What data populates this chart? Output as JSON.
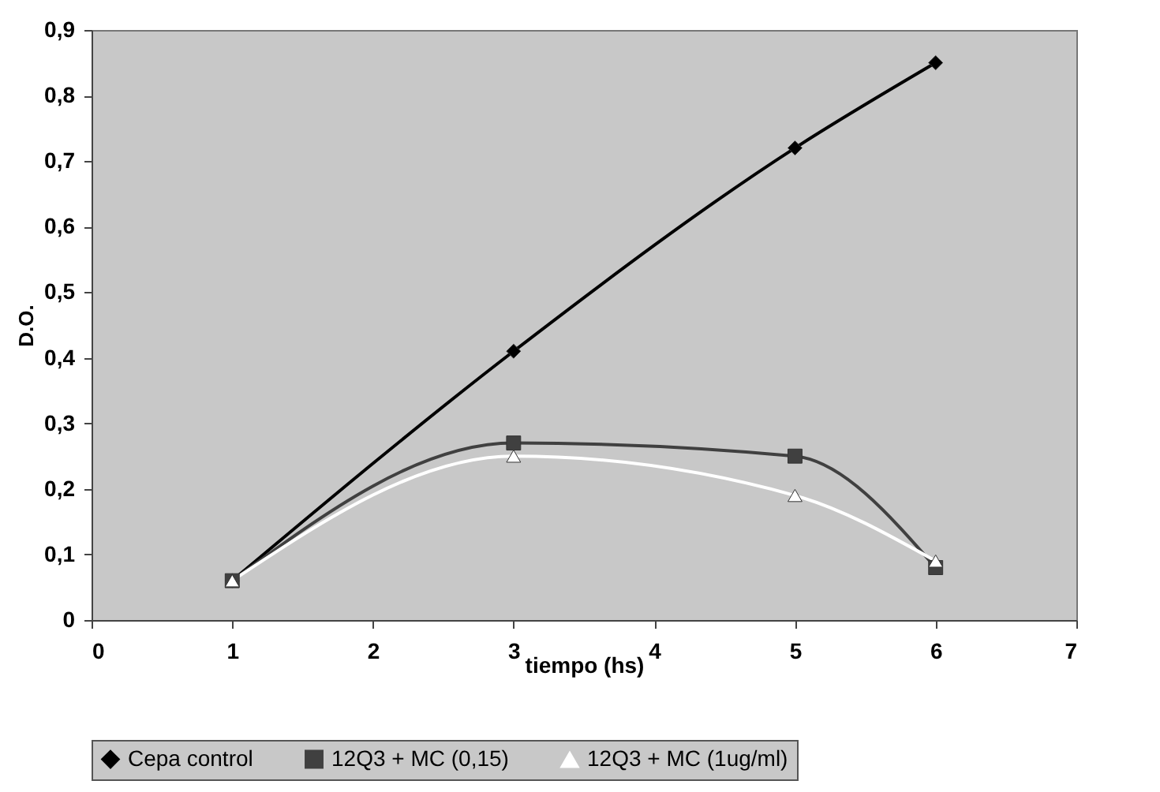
{
  "chart_data": {
    "type": "line",
    "xlabel": "tiempo (hs)",
    "ylabel": "D.O.",
    "x": [
      1,
      3,
      5,
      6
    ],
    "series": [
      {
        "name": "Cepa control",
        "color": "#000000",
        "marker": "diamond",
        "values": [
          0.06,
          0.41,
          0.72,
          0.85
        ]
      },
      {
        "name": "12Q3 + MC (0,15)",
        "color": "#404040",
        "marker": "square",
        "values": [
          0.06,
          0.27,
          0.25,
          0.08
        ]
      },
      {
        "name": "12Q3 + MC (1ug/ml)",
        "color": "#ffffff",
        "marker": "triangle",
        "values": [
          0.06,
          0.25,
          0.19,
          0.09
        ]
      }
    ],
    "xlim": [
      0,
      7
    ],
    "xticks": [
      0,
      1,
      2,
      3,
      4,
      5,
      6,
      7
    ],
    "ylim": [
      0,
      0.9
    ],
    "yticks": [
      0,
      {
        "value": 0.1,
        "label": "0,1"
      },
      {
        "value": 0.2,
        "label": "0,2"
      },
      {
        "value": 0.3,
        "label": "0,3"
      },
      {
        "value": 0.4,
        "label": "0,4"
      },
      {
        "value": 0.5,
        "label": "0,5"
      },
      {
        "value": 0.6,
        "label": "0,6"
      },
      {
        "value": 0.7,
        "label": "0,7"
      },
      {
        "value": 0.8,
        "label": "0,8"
      },
      {
        "value": 0.9,
        "label": "0,9"
      }
    ],
    "grid": false,
    "legend": "bottom",
    "line_style": "solid"
  }
}
